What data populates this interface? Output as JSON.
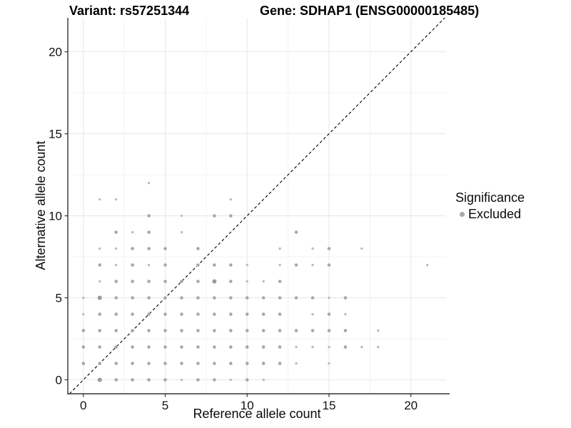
{
  "header": {
    "variant_label": "Variant: rs57251344",
    "gene_label": "Gene: SDHAP1 (ENSG00000185485)"
  },
  "axes": {
    "x_label": "Reference allele count",
    "y_label": "Alternative allele count"
  },
  "legend": {
    "title": "Significance",
    "items": [
      {
        "label": "Excluded",
        "color": "#a8a8a8"
      }
    ],
    "position": "right"
  },
  "colors": {
    "point_small": "#bcbcbc",
    "point_medium": "#a8a8a8",
    "point_large": "#9a9a9a",
    "grid_major": "#e7e7e7",
    "grid_minor": "#f3f3f3",
    "axis_line": "#333333",
    "identity_line": "#000000",
    "tick_text": "#111111"
  },
  "chart_data": {
    "type": "scatter",
    "title": "Variant: rs57251344 — Gene: SDHAP1 (ENSG00000185485)",
    "xlabel": "Reference allele count",
    "ylabel": "Alternative allele count",
    "xlim": [
      -0.95,
      22.15
    ],
    "ylim": [
      -0.85,
      22.07
    ],
    "x_ticks": [
      0,
      5,
      10,
      15,
      20
    ],
    "y_ticks": [
      0,
      5,
      10,
      15,
      20
    ],
    "x_minor_ticks": [
      2.5,
      7.5,
      12.5,
      17.5
    ],
    "y_minor_ticks": [
      2.5,
      7.5,
      12.5,
      17.5
    ],
    "grid": "major+minor",
    "legend_position": "right",
    "identity_line": {
      "style": "dashed",
      "equation": "y = x"
    },
    "series": [
      {
        "name": "Excluded",
        "color": "#a8a8a8",
        "point_format": "[x, y, size_class]",
        "points": [
          [
            4,
            12,
            1
          ],
          [
            1,
            11,
            1
          ],
          [
            2,
            11,
            1
          ],
          [
            9,
            11,
            1
          ],
          [
            4,
            10,
            2
          ],
          [
            6,
            10,
            1
          ],
          [
            8,
            10,
            2
          ],
          [
            9,
            10,
            2
          ],
          [
            2,
            9,
            2
          ],
          [
            3,
            9,
            1
          ],
          [
            4,
            9,
            2
          ],
          [
            6,
            9,
            1
          ],
          [
            13,
            9,
            2
          ],
          [
            1,
            8,
            1
          ],
          [
            2,
            8,
            1
          ],
          [
            3,
            8,
            2
          ],
          [
            4,
            8,
            2
          ],
          [
            5,
            8,
            2
          ],
          [
            7,
            8,
            2
          ],
          [
            12,
            8,
            1
          ],
          [
            14,
            8,
            1
          ],
          [
            15,
            8,
            2
          ],
          [
            17,
            8,
            1
          ],
          [
            1,
            7,
            2
          ],
          [
            2,
            7,
            1
          ],
          [
            3,
            7,
            2
          ],
          [
            4,
            7,
            1
          ],
          [
            5,
            7,
            2
          ],
          [
            7,
            7,
            2
          ],
          [
            8,
            7,
            2
          ],
          [
            9,
            7,
            2
          ],
          [
            10,
            7,
            1
          ],
          [
            12,
            7,
            1
          ],
          [
            13,
            7,
            2
          ],
          [
            14,
            7,
            1
          ],
          [
            15,
            7,
            2
          ],
          [
            21,
            7,
            1
          ],
          [
            1,
            6,
            1
          ],
          [
            2,
            6,
            2
          ],
          [
            3,
            6,
            2
          ],
          [
            4,
            6,
            2
          ],
          [
            5,
            6,
            2
          ],
          [
            6,
            6,
            2
          ],
          [
            7,
            6,
            2
          ],
          [
            8,
            6,
            3
          ],
          [
            9,
            6,
            2
          ],
          [
            10,
            6,
            1
          ],
          [
            11,
            6,
            1
          ],
          [
            12,
            6,
            2
          ],
          [
            0,
            5,
            1
          ],
          [
            1,
            5,
            3
          ],
          [
            2,
            5,
            2
          ],
          [
            3,
            5,
            2
          ],
          [
            4,
            5,
            2
          ],
          [
            5,
            5,
            2
          ],
          [
            6,
            5,
            2
          ],
          [
            7,
            5,
            2
          ],
          [
            8,
            5,
            2
          ],
          [
            9,
            5,
            2
          ],
          [
            10,
            5,
            2
          ],
          [
            11,
            5,
            2
          ],
          [
            12,
            5,
            2
          ],
          [
            13,
            5,
            2
          ],
          [
            14,
            5,
            2
          ],
          [
            15,
            5,
            1
          ],
          [
            16,
            5,
            2
          ],
          [
            0,
            4,
            1
          ],
          [
            1,
            4,
            2
          ],
          [
            2,
            4,
            2
          ],
          [
            3,
            4,
            2
          ],
          [
            4,
            4,
            2
          ],
          [
            5,
            4,
            2
          ],
          [
            6,
            4,
            2
          ],
          [
            7,
            4,
            2
          ],
          [
            8,
            4,
            2
          ],
          [
            9,
            4,
            2
          ],
          [
            10,
            4,
            2
          ],
          [
            11,
            4,
            2
          ],
          [
            12,
            4,
            2
          ],
          [
            14,
            4,
            1
          ],
          [
            15,
            4,
            2
          ],
          [
            16,
            4,
            1
          ],
          [
            0,
            3,
            2
          ],
          [
            1,
            3,
            2
          ],
          [
            2,
            3,
            2
          ],
          [
            3,
            3,
            2
          ],
          [
            4,
            3,
            2
          ],
          [
            5,
            3,
            2
          ],
          [
            6,
            3,
            2
          ],
          [
            7,
            3,
            2
          ],
          [
            8,
            3,
            2
          ],
          [
            9,
            3,
            2
          ],
          [
            10,
            3,
            2
          ],
          [
            11,
            3,
            2
          ],
          [
            12,
            3,
            2
          ],
          [
            13,
            3,
            2
          ],
          [
            14,
            3,
            2
          ],
          [
            15,
            3,
            2
          ],
          [
            16,
            3,
            2
          ],
          [
            18,
            3,
            1
          ],
          [
            0,
            2,
            2
          ],
          [
            1,
            2,
            2
          ],
          [
            2,
            2,
            2
          ],
          [
            3,
            2,
            2
          ],
          [
            4,
            2,
            2
          ],
          [
            5,
            2,
            2
          ],
          [
            6,
            2,
            2
          ],
          [
            7,
            2,
            2
          ],
          [
            8,
            2,
            2
          ],
          [
            9,
            2,
            2
          ],
          [
            10,
            2,
            2
          ],
          [
            11,
            2,
            2
          ],
          [
            12,
            2,
            2
          ],
          [
            13,
            2,
            1
          ],
          [
            14,
            2,
            1
          ],
          [
            15,
            2,
            1
          ],
          [
            16,
            2,
            2
          ],
          [
            17,
            2,
            1
          ],
          [
            18,
            2,
            1
          ],
          [
            0,
            1,
            2
          ],
          [
            1,
            1,
            2
          ],
          [
            2,
            1,
            2
          ],
          [
            3,
            1,
            2
          ],
          [
            4,
            1,
            2
          ],
          [
            5,
            1,
            2
          ],
          [
            6,
            1,
            2
          ],
          [
            7,
            1,
            2
          ],
          [
            8,
            1,
            2
          ],
          [
            9,
            1,
            2
          ],
          [
            10,
            1,
            2
          ],
          [
            11,
            1,
            2
          ],
          [
            12,
            1,
            2
          ],
          [
            13,
            1,
            1
          ],
          [
            15,
            1,
            1
          ],
          [
            1,
            0,
            3
          ],
          [
            2,
            0,
            2
          ],
          [
            3,
            0,
            2
          ],
          [
            4,
            0,
            2
          ],
          [
            5,
            0,
            2
          ],
          [
            6,
            0,
            1
          ],
          [
            7,
            0,
            2
          ],
          [
            8,
            0,
            2
          ],
          [
            9,
            0,
            1
          ],
          [
            10,
            0,
            2
          ],
          [
            11,
            0,
            1
          ]
        ]
      }
    ]
  }
}
